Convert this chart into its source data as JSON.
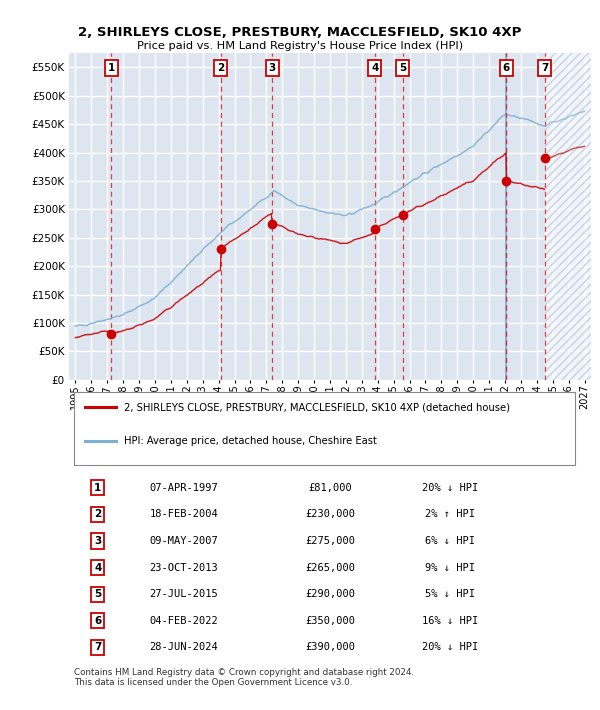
{
  "title": "2, SHIRLEYS CLOSE, PRESTBURY, MACCLESFIELD, SK10 4XP",
  "subtitle": "Price paid vs. HM Land Registry's House Price Index (HPI)",
  "ylim": [
    0,
    575000
  ],
  "yticks": [
    0,
    50000,
    100000,
    150000,
    200000,
    250000,
    300000,
    350000,
    400000,
    450000,
    500000,
    550000
  ],
  "ytick_labels": [
    "£0",
    "£50K",
    "£100K",
    "£150K",
    "£200K",
    "£250K",
    "£300K",
    "£350K",
    "£400K",
    "£450K",
    "£500K",
    "£550K"
  ],
  "xlim_start": 1994.6,
  "xlim_end": 2027.4,
  "xtick_years": [
    1995,
    1996,
    1997,
    1998,
    1999,
    2000,
    2001,
    2002,
    2003,
    2004,
    2005,
    2006,
    2007,
    2008,
    2009,
    2010,
    2011,
    2012,
    2013,
    2014,
    2015,
    2016,
    2017,
    2018,
    2019,
    2020,
    2021,
    2022,
    2023,
    2024,
    2025,
    2026,
    2027
  ],
  "sale_points": [
    {
      "num": 1,
      "date": "07-APR-1997",
      "year": 1997.27,
      "price": 81000,
      "hpi_pct": "20% ↓ HPI"
    },
    {
      "num": 2,
      "date": "18-FEB-2004",
      "year": 2004.13,
      "price": 230000,
      "hpi_pct": "2% ↑ HPI"
    },
    {
      "num": 3,
      "date": "09-MAY-2007",
      "year": 2007.36,
      "price": 275000,
      "hpi_pct": "6% ↓ HPI"
    },
    {
      "num": 4,
      "date": "23-OCT-2013",
      "year": 2013.81,
      "price": 265000,
      "hpi_pct": "9% ↓ HPI"
    },
    {
      "num": 5,
      "date": "27-JUL-2015",
      "year": 2015.57,
      "price": 290000,
      "hpi_pct": "5% ↓ HPI"
    },
    {
      "num": 6,
      "date": "04-FEB-2022",
      "year": 2022.09,
      "price": 350000,
      "hpi_pct": "16% ↓ HPI"
    },
    {
      "num": 7,
      "date": "28-JUN-2024",
      "year": 2024.49,
      "price": 390000,
      "hpi_pct": "20% ↓ HPI"
    }
  ],
  "legend_line1": "2, SHIRLEYS CLOSE, PRESTBURY, MACCLESFIELD, SK10 4XP (detached house)",
  "legend_line2": "HPI: Average price, detached house, Cheshire East",
  "red_line_color": "#cc0000",
  "blue_line_color": "#7bafd4",
  "bg_color": "#dde5f0",
  "grid_color": "#ffffff",
  "sale_box_color": "#cc0000",
  "hatch_color": "#aabbdd",
  "footer1": "Contains HM Land Registry data © Crown copyright and database right 2024.",
  "footer2": "This data is licensed under the Open Government Licence v3.0."
}
